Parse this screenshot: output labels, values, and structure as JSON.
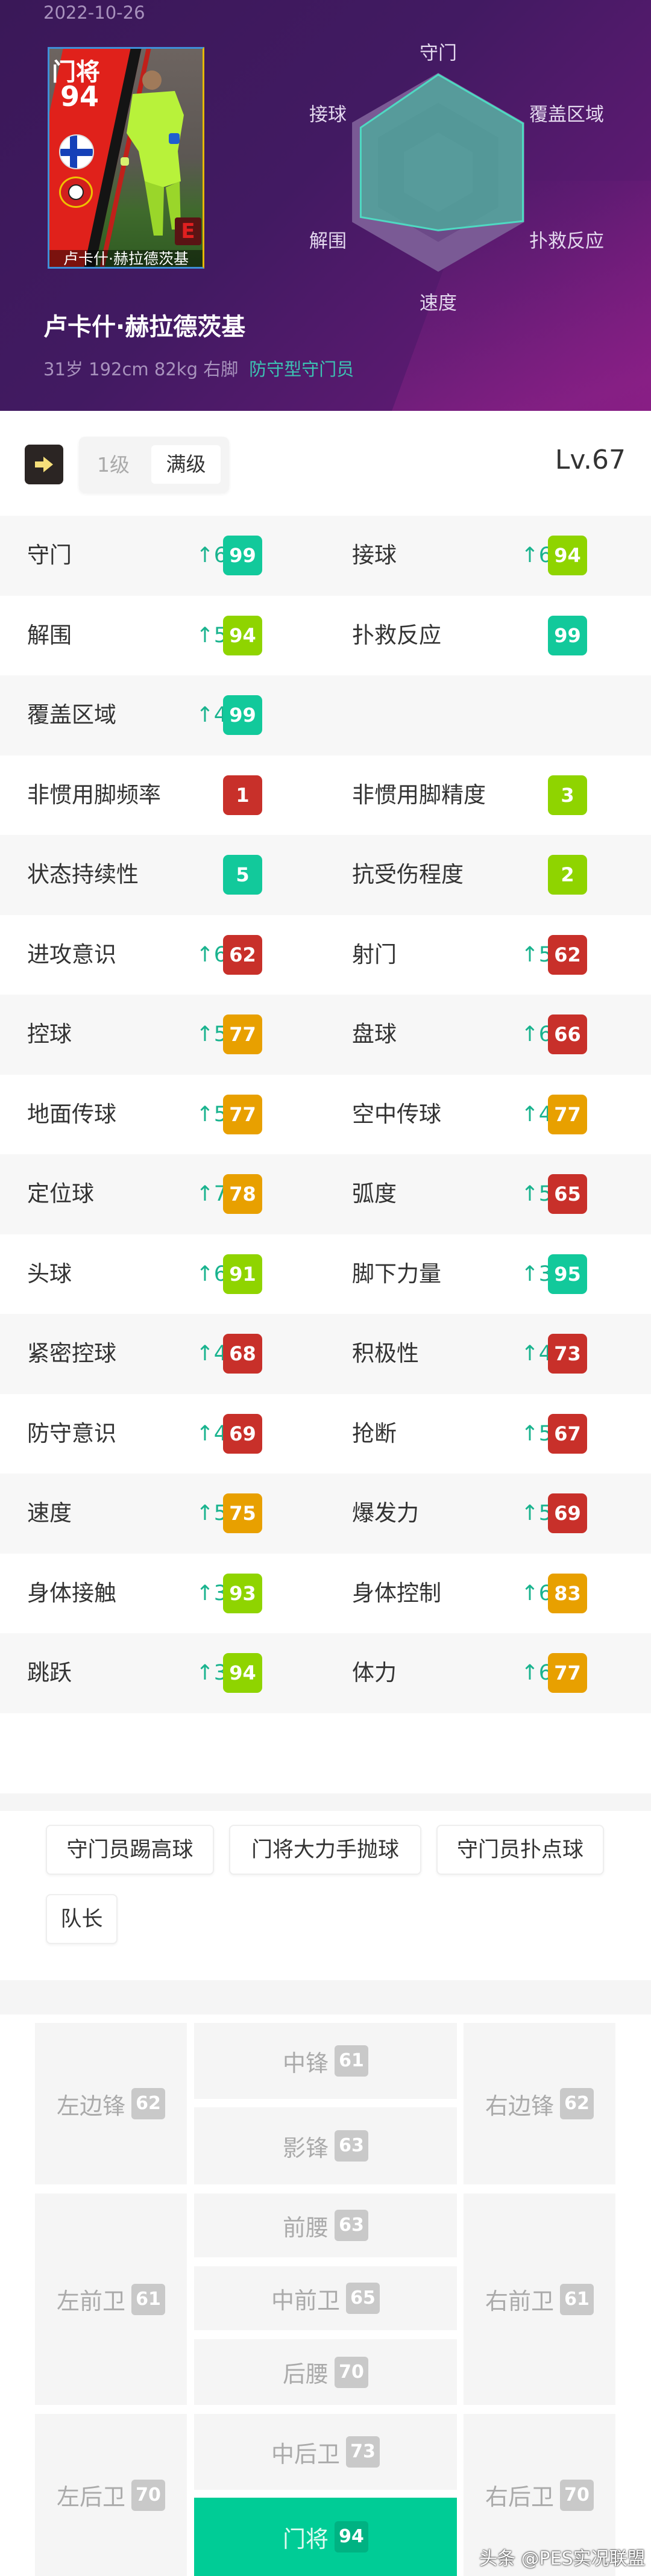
{
  "header": {
    "date": "2022-10-26",
    "card": {
      "position": "门将",
      "overall": "94",
      "name": "卢卡什·赫拉德茨基",
      "form_grade": "E",
      "flag": "finland-flag",
      "club": "leverkusen-crest"
    },
    "player_name": "卢卡什·赫拉德茨基",
    "info": "31岁 192cm 82kg 右脚",
    "role": "防守型守门员"
  },
  "radar": {
    "axes": [
      "守门",
      "覆盖区域",
      "扑救反应",
      "速度",
      "解围",
      "接球"
    ],
    "values": [
      99,
      99,
      99,
      75,
      94,
      94
    ],
    "fill_color": "#4fa99c",
    "stroke_color": "#4fd9c2"
  },
  "toolbar": {
    "arrow_icon": "arrow-right-icon",
    "level_options": [
      "1级",
      "满级"
    ],
    "selected": "满级",
    "level": "Lv.67"
  },
  "colors": {
    "teal": "#12c99b",
    "lime": "#8fd400",
    "orange": "#e8a000",
    "red": "#c8302a",
    "delta": "#19b38e"
  },
  "stats": [
    [
      {
        "label": "守门",
        "delta": "↑6",
        "value": "99",
        "color": "#12c99b"
      },
      {
        "label": "接球",
        "delta": "↑6",
        "value": "94",
        "color": "#8fd400"
      }
    ],
    [
      {
        "label": "解围",
        "delta": "↑5",
        "value": "94",
        "color": "#8fd400"
      },
      {
        "label": "扑救反应",
        "delta": "",
        "value": "99",
        "color": "#12c99b"
      }
    ],
    [
      {
        "label": "覆盖区域",
        "delta": "↑4",
        "value": "99",
        "color": "#12c99b"
      },
      null
    ],
    [
      {
        "label": "非惯用脚频率",
        "delta": "",
        "value": "1",
        "color": "#c8302a"
      },
      {
        "label": "非惯用脚精度",
        "delta": "",
        "value": "3",
        "color": "#8fd400"
      }
    ],
    [
      {
        "label": "状态持续性",
        "delta": "",
        "value": "5",
        "color": "#12c99b"
      },
      {
        "label": "抗受伤程度",
        "delta": "",
        "value": "2",
        "color": "#8fd400"
      }
    ],
    [
      {
        "label": "进攻意识",
        "delta": "↑6",
        "value": "62",
        "color": "#c8302a"
      },
      {
        "label": "射门",
        "delta": "↑5",
        "value": "62",
        "color": "#c8302a"
      }
    ],
    [
      {
        "label": "控球",
        "delta": "↑5",
        "value": "77",
        "color": "#e8a000"
      },
      {
        "label": "盘球",
        "delta": "↑6",
        "value": "66",
        "color": "#c8302a"
      }
    ],
    [
      {
        "label": "地面传球",
        "delta": "↑5",
        "value": "77",
        "color": "#e8a000"
      },
      {
        "label": "空中传球",
        "delta": "↑4",
        "value": "77",
        "color": "#e8a000"
      }
    ],
    [
      {
        "label": "定位球",
        "delta": "↑7",
        "value": "78",
        "color": "#e8a000"
      },
      {
        "label": "弧度",
        "delta": "↑5",
        "value": "65",
        "color": "#c8302a"
      }
    ],
    [
      {
        "label": "头球",
        "delta": "↑6",
        "value": "91",
        "color": "#8fd400"
      },
      {
        "label": "脚下力量",
        "delta": "↑3",
        "value": "95",
        "color": "#12c99b"
      }
    ],
    [
      {
        "label": "紧密控球",
        "delta": "↑4",
        "value": "68",
        "color": "#c8302a"
      },
      {
        "label": "积极性",
        "delta": "↑4",
        "value": "73",
        "color": "#c8302a"
      }
    ],
    [
      {
        "label": "防守意识",
        "delta": "↑4",
        "value": "69",
        "color": "#c8302a"
      },
      {
        "label": "抢断",
        "delta": "↑5",
        "value": "67",
        "color": "#c8302a"
      }
    ],
    [
      {
        "label": "速度",
        "delta": "↑5",
        "value": "75",
        "color": "#e8a000"
      },
      {
        "label": "爆发力",
        "delta": "↑5",
        "value": "69",
        "color": "#c8302a"
      }
    ],
    [
      {
        "label": "身体接触",
        "delta": "↑3",
        "value": "93",
        "color": "#8fd400"
      },
      {
        "label": "身体控制",
        "delta": "↑6",
        "value": "83",
        "color": "#e8a000"
      }
    ],
    [
      {
        "label": "跳跃",
        "delta": "↑3",
        "value": "94",
        "color": "#8fd400"
      },
      {
        "label": "体力",
        "delta": "↑6",
        "value": "77",
        "color": "#e8a000"
      }
    ]
  ],
  "skills": [
    "守门员踢高球",
    "门将大力手抛球",
    "守门员扑点球",
    "队长"
  ],
  "positions": {
    "LWF": {
      "label": "左边锋",
      "value": "62"
    },
    "CF": {
      "label": "中锋",
      "value": "61"
    },
    "SS": {
      "label": "影锋",
      "value": "63"
    },
    "RWF": {
      "label": "右边锋",
      "value": "62"
    },
    "LMF": {
      "label": "左前卫",
      "value": "61"
    },
    "AMF": {
      "label": "前腰",
      "value": "63"
    },
    "CMF": {
      "label": "中前卫",
      "value": "65"
    },
    "DMF": {
      "label": "后腰",
      "value": "70"
    },
    "RMF": {
      "label": "右前卫",
      "value": "61"
    },
    "LB": {
      "label": "左后卫",
      "value": "70"
    },
    "CB": {
      "label": "中后卫",
      "value": "73"
    },
    "GK": {
      "label": "门将",
      "value": "94"
    },
    "RB": {
      "label": "右后卫",
      "value": "70"
    }
  },
  "active_position": "GK",
  "active_color": "#00cc96",
  "watermark": "头条 @PES实况联盟"
}
